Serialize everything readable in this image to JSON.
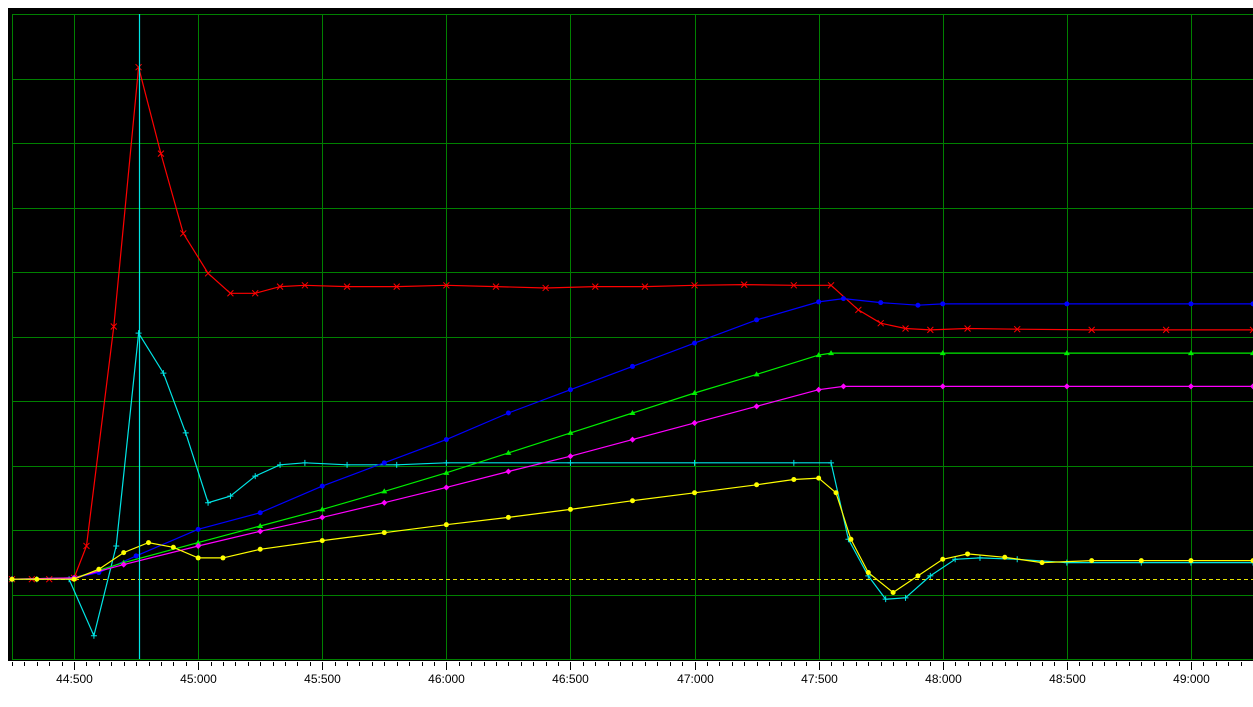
{
  "chart_data": {
    "type": "line",
    "title": "",
    "xlabel": "",
    "ylabel": "",
    "xlim": [
      44.25,
      49.25
    ],
    "ylim": [
      -1.2,
      8.5
    ],
    "grid": true,
    "x_ticks": [
      {
        "value": 44.5,
        "label": "44:500"
      },
      {
        "value": 45.0,
        "label": "45:000"
      },
      {
        "value": 45.5,
        "label": "45:500"
      },
      {
        "value": 46.0,
        "label": "46:000"
      },
      {
        "value": 46.5,
        "label": "46:500"
      },
      {
        "value": 47.0,
        "label": "47:000"
      },
      {
        "value": 47.5,
        "label": "47:500"
      },
      {
        "value": 48.0,
        "label": "48:000"
      },
      {
        "value": 48.5,
        "label": "48:500"
      },
      {
        "value": 49.0,
        "label": "49:000"
      }
    ],
    "minor_tick_step": 0.05,
    "cursor_x": 44.76,
    "baseline_y": 0,
    "colors": {
      "background": "#000000",
      "grid": "#008000",
      "cursor": "#00e5e5",
      "baseline": "#e5e500",
      "frame": "#ffffff"
    },
    "series": [
      {
        "color": "#ff0000",
        "marker": "cross",
        "points": [
          [
            44.25,
            0
          ],
          [
            44.33,
            0
          ],
          [
            44.4,
            0
          ],
          [
            44.5,
            0.02
          ],
          [
            44.55,
            0.5
          ],
          [
            44.66,
            3.8
          ],
          [
            44.76,
            7.7
          ],
          [
            44.85,
            6.4
          ],
          [
            44.94,
            5.2
          ],
          [
            45.04,
            4.6
          ],
          [
            45.13,
            4.3
          ],
          [
            45.23,
            4.3
          ],
          [
            45.33,
            4.4
          ],
          [
            45.43,
            4.42
          ],
          [
            45.6,
            4.4
          ],
          [
            45.8,
            4.4
          ],
          [
            46.0,
            4.42
          ],
          [
            46.2,
            4.4
          ],
          [
            46.4,
            4.38
          ],
          [
            46.6,
            4.4
          ],
          [
            46.8,
            4.4
          ],
          [
            47.0,
            4.42
          ],
          [
            47.2,
            4.43
          ],
          [
            47.4,
            4.42
          ],
          [
            47.55,
            4.42
          ],
          [
            47.66,
            4.05
          ],
          [
            47.75,
            3.85
          ],
          [
            47.85,
            3.77
          ],
          [
            47.95,
            3.75
          ],
          [
            48.1,
            3.77
          ],
          [
            48.3,
            3.76
          ],
          [
            48.6,
            3.75
          ],
          [
            48.9,
            3.75
          ],
          [
            49.25,
            3.75
          ]
        ]
      },
      {
        "color": "#00e5e5",
        "marker": "plus",
        "points": [
          [
            44.25,
            0
          ],
          [
            44.35,
            0
          ],
          [
            44.48,
            0
          ],
          [
            44.58,
            -0.85
          ],
          [
            44.67,
            0.5
          ],
          [
            44.76,
            3.7
          ],
          [
            44.86,
            3.1
          ],
          [
            44.95,
            2.2
          ],
          [
            45.04,
            1.15
          ],
          [
            45.13,
            1.25
          ],
          [
            45.23,
            1.55
          ],
          [
            45.33,
            1.72
          ],
          [
            45.43,
            1.75
          ],
          [
            45.6,
            1.72
          ],
          [
            45.8,
            1.72
          ],
          [
            46.0,
            1.75
          ],
          [
            46.5,
            1.75
          ],
          [
            47.0,
            1.75
          ],
          [
            47.4,
            1.75
          ],
          [
            47.55,
            1.75
          ],
          [
            47.62,
            0.6
          ],
          [
            47.7,
            0.05
          ],
          [
            47.77,
            -0.3
          ],
          [
            47.85,
            -0.28
          ],
          [
            47.95,
            0.05
          ],
          [
            48.05,
            0.3
          ],
          [
            48.15,
            0.32
          ],
          [
            48.3,
            0.3
          ],
          [
            48.5,
            0.25
          ],
          [
            48.8,
            0.25
          ],
          [
            49.0,
            0.25
          ],
          [
            49.25,
            0.25
          ]
        ]
      },
      {
        "color": "#0000ff",
        "marker": "dot",
        "points": [
          [
            44.25,
            0
          ],
          [
            44.5,
            0.02
          ],
          [
            44.6,
            0.1
          ],
          [
            44.75,
            0.35
          ],
          [
            45.0,
            0.75
          ],
          [
            45.25,
            1.0
          ],
          [
            45.5,
            1.4
          ],
          [
            45.75,
            1.75
          ],
          [
            46.0,
            2.1
          ],
          [
            46.25,
            2.5
          ],
          [
            46.5,
            2.85
          ],
          [
            46.75,
            3.2
          ],
          [
            47.0,
            3.55
          ],
          [
            47.25,
            3.9
          ],
          [
            47.5,
            4.17
          ],
          [
            47.6,
            4.22
          ],
          [
            47.75,
            4.16
          ],
          [
            47.9,
            4.12
          ],
          [
            48.0,
            4.14
          ],
          [
            48.5,
            4.14
          ],
          [
            49.0,
            4.14
          ],
          [
            49.25,
            4.14
          ]
        ]
      },
      {
        "color": "#00ee00",
        "marker": "triangle",
        "points": [
          [
            44.25,
            0
          ],
          [
            44.5,
            0.02
          ],
          [
            44.7,
            0.25
          ],
          [
            45.0,
            0.55
          ],
          [
            45.25,
            0.8
          ],
          [
            45.5,
            1.05
          ],
          [
            45.75,
            1.32
          ],
          [
            46.0,
            1.6
          ],
          [
            46.25,
            1.9
          ],
          [
            46.5,
            2.2
          ],
          [
            46.75,
            2.5
          ],
          [
            47.0,
            2.8
          ],
          [
            47.25,
            3.08
          ],
          [
            47.5,
            3.37
          ],
          [
            47.55,
            3.4
          ],
          [
            48.0,
            3.4
          ],
          [
            48.5,
            3.4
          ],
          [
            49.0,
            3.4
          ],
          [
            49.25,
            3.4
          ]
        ]
      },
      {
        "color": "#ff00ff",
        "marker": "diamond",
        "points": [
          [
            44.25,
            0
          ],
          [
            44.5,
            0.02
          ],
          [
            44.7,
            0.22
          ],
          [
            45.0,
            0.5
          ],
          [
            45.25,
            0.72
          ],
          [
            45.5,
            0.93
          ],
          [
            45.75,
            1.15
          ],
          [
            46.0,
            1.38
          ],
          [
            46.25,
            1.62
          ],
          [
            46.5,
            1.85
          ],
          [
            46.75,
            2.1
          ],
          [
            47.0,
            2.35
          ],
          [
            47.25,
            2.6
          ],
          [
            47.5,
            2.85
          ],
          [
            47.6,
            2.9
          ],
          [
            48.0,
            2.9
          ],
          [
            48.5,
            2.9
          ],
          [
            49.0,
            2.9
          ],
          [
            49.25,
            2.9
          ]
        ]
      },
      {
        "color": "#ffff00",
        "marker": "dot",
        "points": [
          [
            44.25,
            0
          ],
          [
            44.35,
            0
          ],
          [
            44.5,
            0
          ],
          [
            44.6,
            0.15
          ],
          [
            44.7,
            0.4
          ],
          [
            44.8,
            0.55
          ],
          [
            44.9,
            0.48
          ],
          [
            45.0,
            0.32
          ],
          [
            45.1,
            0.32
          ],
          [
            45.25,
            0.45
          ],
          [
            45.5,
            0.58
          ],
          [
            45.75,
            0.7
          ],
          [
            46.0,
            0.82
          ],
          [
            46.25,
            0.93
          ],
          [
            46.5,
            1.05
          ],
          [
            46.75,
            1.18
          ],
          [
            47.0,
            1.3
          ],
          [
            47.25,
            1.42
          ],
          [
            47.4,
            1.5
          ],
          [
            47.5,
            1.52
          ],
          [
            47.57,
            1.3
          ],
          [
            47.63,
            0.6
          ],
          [
            47.7,
            0.1
          ],
          [
            47.8,
            -0.2
          ],
          [
            47.9,
            0.05
          ],
          [
            48.0,
            0.3
          ],
          [
            48.1,
            0.38
          ],
          [
            48.25,
            0.33
          ],
          [
            48.4,
            0.25
          ],
          [
            48.6,
            0.28
          ],
          [
            48.8,
            0.28
          ],
          [
            49.0,
            0.28
          ],
          [
            49.25,
            0.28
          ]
        ]
      }
    ]
  }
}
